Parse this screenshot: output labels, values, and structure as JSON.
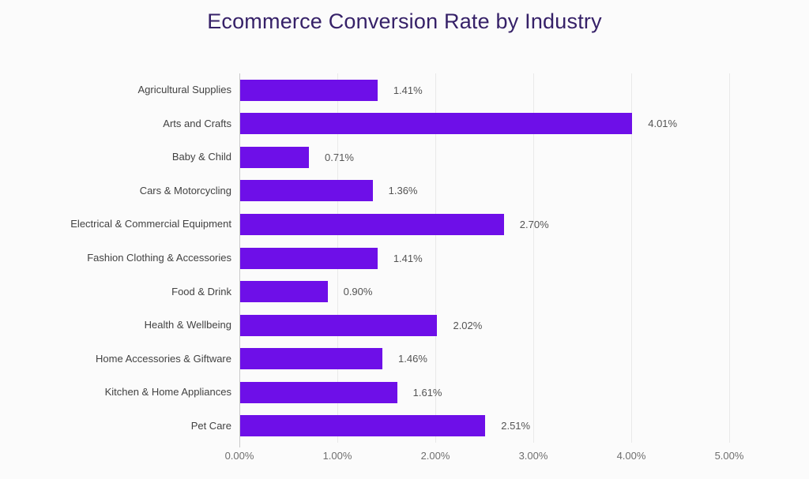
{
  "chart_data": {
    "type": "bar",
    "orientation": "horizontal",
    "title": "Ecommerce Conversion Rate by Industry",
    "categories": [
      "Agricultural Supplies",
      "Arts and Crafts",
      "Baby & Child",
      "Cars & Motorcycling",
      "Electrical & Commercial Equipment",
      "Fashion Clothing & Accessories",
      "Food & Drink",
      "Health & Wellbeing",
      "Home Accessories & Giftware",
      "Kitchen & Home Appliances",
      "Pet Care"
    ],
    "values": [
      1.41,
      4.01,
      0.71,
      1.36,
      2.7,
      1.41,
      0.9,
      2.02,
      1.46,
      1.61,
      2.51
    ],
    "value_labels": [
      "1.41%",
      "4.01%",
      "0.71%",
      "1.36%",
      "2.70%",
      "1.41%",
      "0.90%",
      "2.02%",
      "1.46%",
      "1.61%",
      "2.51%"
    ],
    "xlabel": "",
    "ylabel": "",
    "xlim": [
      0,
      5
    ],
    "x_ticks": [
      "0.00%",
      "1.00%",
      "2.00%",
      "3.00%",
      "4.00%",
      "5.00%"
    ],
    "x_tick_values": [
      0,
      1,
      2,
      3,
      4,
      5
    ],
    "grid": true,
    "legend": "none",
    "colors": {
      "bar": "#6E0FE8",
      "title": "#362168",
      "category_label": "#424242",
      "value_label": "#545454",
      "tick_label": "#6F6F6F",
      "gridline": "#E9E9E9",
      "axis_line": "#C9C9C9",
      "background": "#FBFBFB"
    }
  }
}
